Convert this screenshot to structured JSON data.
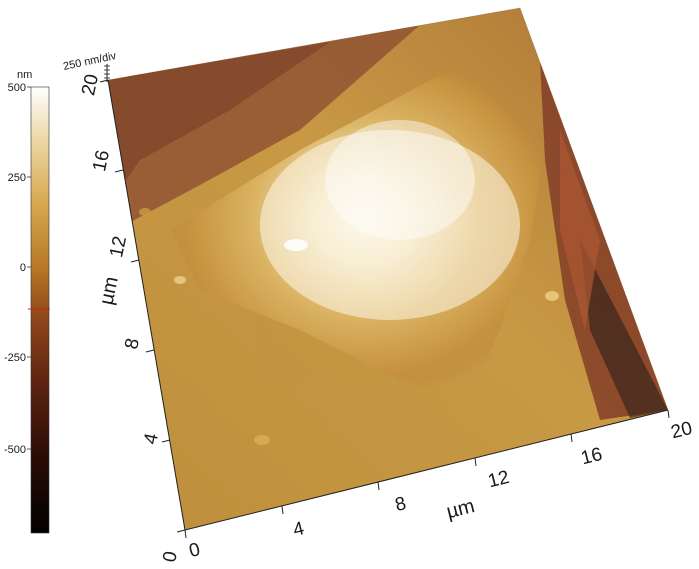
{
  "colorbar": {
    "unit": "nm",
    "ticks": [
      "500",
      "250",
      "0",
      "-250",
      "-500"
    ],
    "marker_value": -100,
    "colors": [
      "#000000",
      "#3a1208",
      "#6e2a12",
      "#a3551f",
      "#c78a2a",
      "#dcb25a",
      "#ecd7a4",
      "#ffffff"
    ]
  },
  "z_scale": {
    "label": "250 nm/div"
  },
  "x_axis": {
    "title": "µm",
    "ticks": [
      "0",
      "4",
      "8",
      "12",
      "16",
      "20"
    ]
  },
  "y_axis": {
    "title": "µm",
    "ticks": [
      "0",
      "4",
      "8",
      "12",
      "16",
      "20"
    ]
  }
}
